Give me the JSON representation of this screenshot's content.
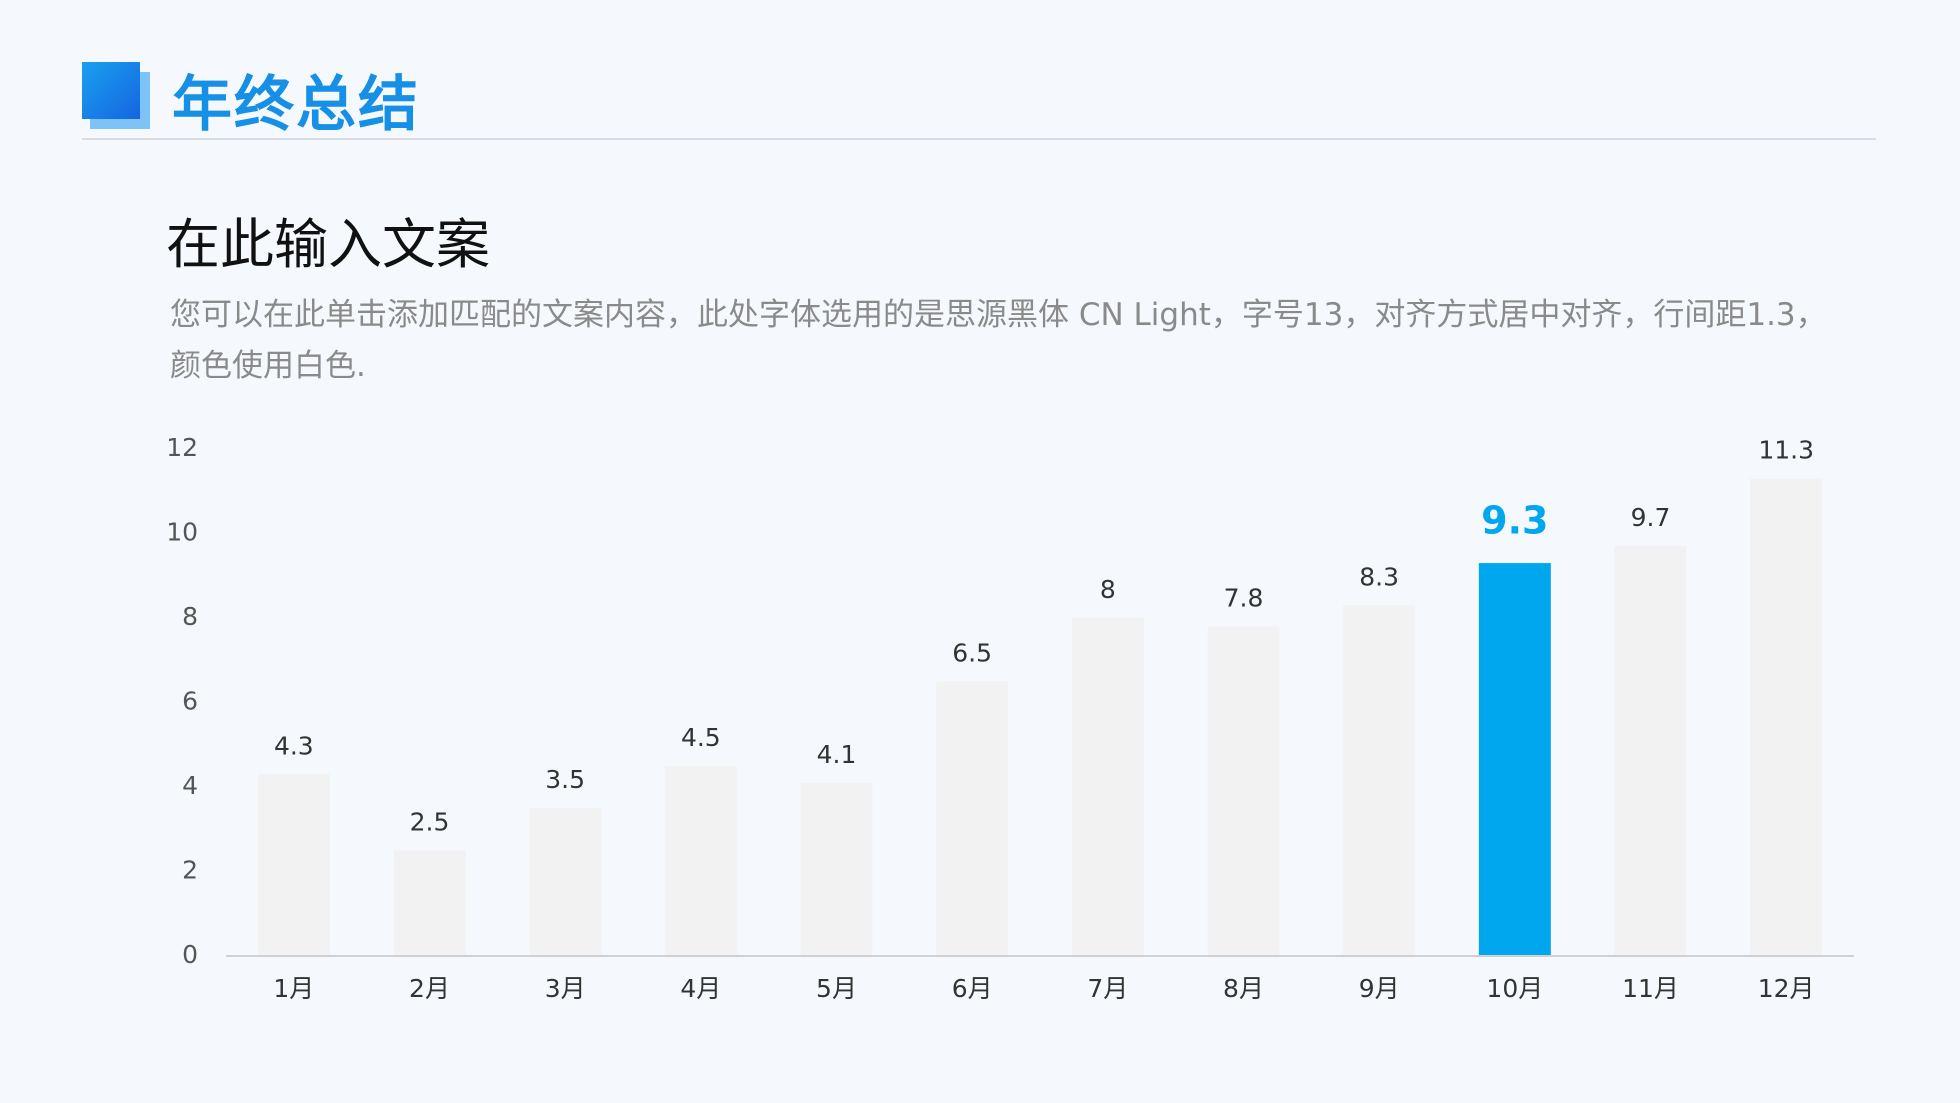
{
  "header": {
    "title": "年终总结"
  },
  "subtitle": "在此输入文案",
  "description": "您可以在此单击添加匹配的文案内容，此处字体选用的是思源黑体 CN Light，字号13，对齐方式居中对齐，行间距1.3，颜色使用白色.",
  "chart_data": {
    "type": "bar",
    "categories": [
      "1月",
      "2月",
      "3月",
      "4月",
      "5月",
      "6月",
      "7月",
      "8月",
      "9月",
      "10月",
      "11月",
      "12月"
    ],
    "values": [
      4.3,
      2.5,
      3.5,
      4.5,
      4.1,
      6.5,
      8,
      7.8,
      8.3,
      9.3,
      9.7,
      11.3
    ],
    "colors": [
      "#f2f2f2",
      "#f2f2f2",
      "#f2f2f2",
      "#f2f2f2",
      "#f2f2f2",
      "#f2f2f2",
      "#f2f2f2",
      "#f2f2f2",
      "#f2f2f2",
      "#00a6ee",
      "#f2f2f2",
      "#f2f2f2"
    ],
    "ylim": [
      0,
      12
    ],
    "yticks": [
      0,
      2,
      4,
      6,
      8,
      10,
      12
    ],
    "grid": false
  }
}
